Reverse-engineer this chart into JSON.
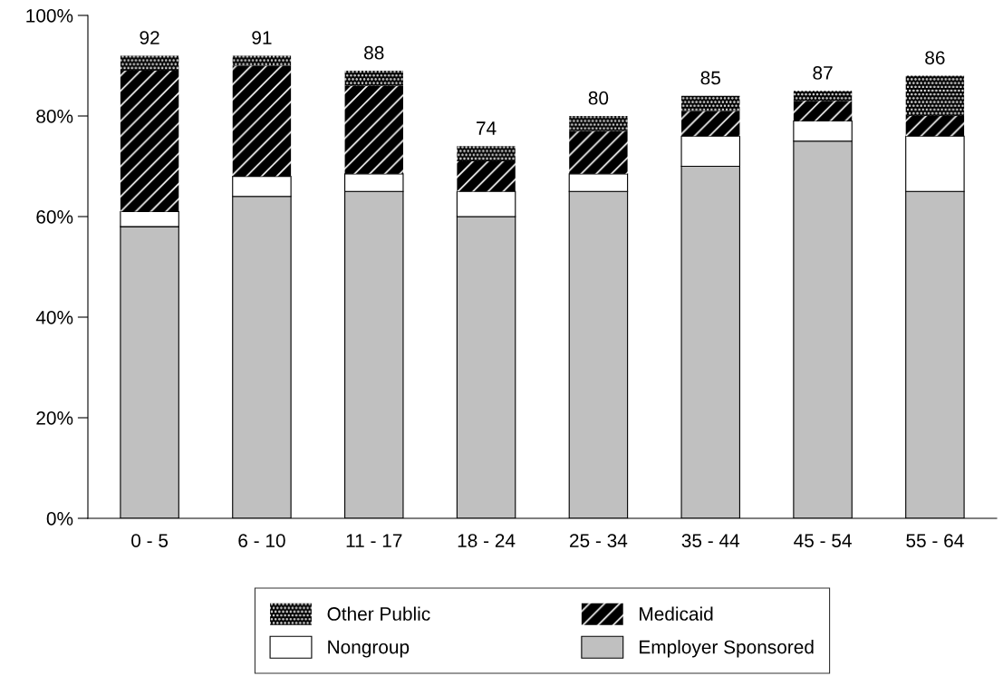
{
  "chart_data": {
    "type": "bar",
    "stacked": true,
    "categories": [
      "0 - 5",
      "6 - 10",
      "11 - 17",
      "18 - 24",
      "25 - 34",
      "35 - 44",
      "45 - 54",
      "55 - 64"
    ],
    "series": [
      {
        "name": "Employer Sponsored",
        "color": "#c0c0c0",
        "values": [
          58,
          64,
          65,
          60,
          65,
          70,
          75,
          65
        ]
      },
      {
        "name": "Nongroup",
        "color": "#ffffff",
        "values": [
          3,
          4,
          3.5,
          5,
          3.5,
          6,
          4,
          11
        ]
      },
      {
        "name": "Medicaid",
        "color": "#000000",
        "values": [
          28,
          22,
          17.5,
          6,
          8.5,
          5,
          4,
          4
        ]
      },
      {
        "name": "Other Public",
        "color": "#000000",
        "values": [
          3,
          2,
          3,
          3,
          3,
          3,
          2,
          8
        ]
      }
    ],
    "totals": [
      "92",
      "91",
      "88",
      "74",
      "80",
      "85",
      "87",
      "86"
    ],
    "ylim": [
      0,
      100
    ],
    "yticks": [
      {
        "value": 0,
        "label": "0%"
      },
      {
        "value": 20,
        "label": "20%"
      },
      {
        "value": 40,
        "label": "40%"
      },
      {
        "value": 60,
        "label": "60%"
      },
      {
        "value": 80,
        "label": "80%"
      },
      {
        "value": 100,
        "label": "100%"
      }
    ],
    "grid": false,
    "legend": "bottom"
  }
}
